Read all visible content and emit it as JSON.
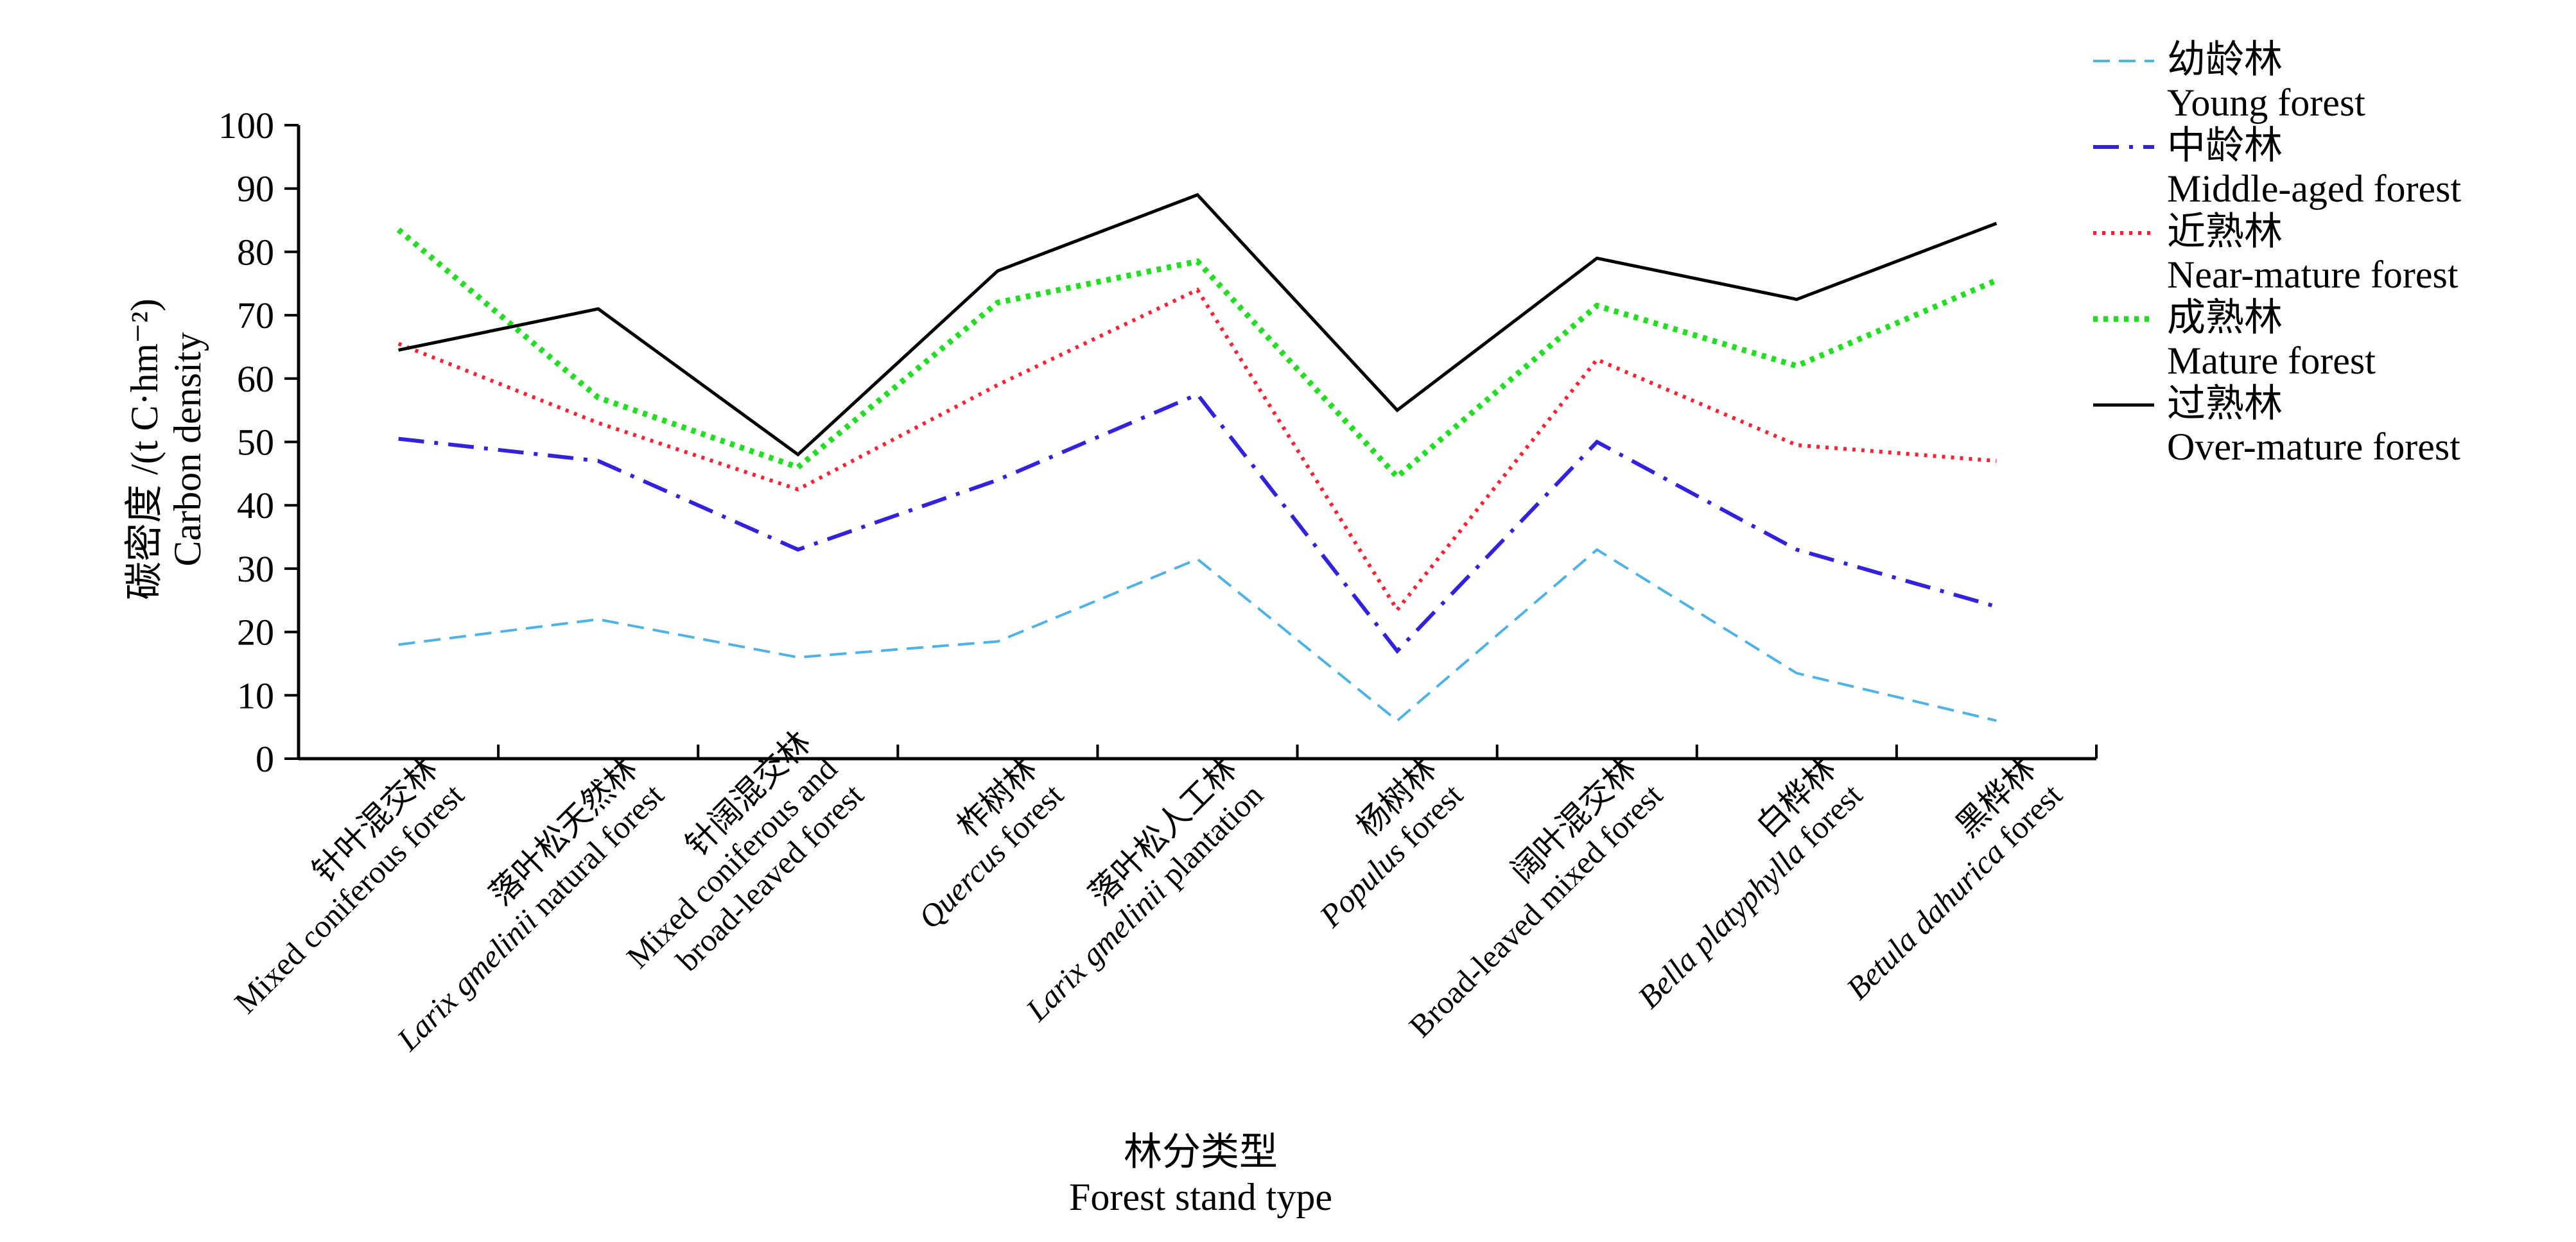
{
  "chart_data": {
    "type": "line",
    "xlabel_cn": "林分类型",
    "xlabel_en": "Forest stand type",
    "ylabel_cn": "碳密度 /(t C·hm⁻²)",
    "ylabel_en": "Carbon density",
    "ylim": [
      0,
      100
    ],
    "yticks": [
      "0",
      "10",
      "20",
      "30",
      "40",
      "50",
      "60",
      "70",
      "80",
      "90",
      "100"
    ],
    "grid": false,
    "legend_position": "top-right outside",
    "categories": [
      {
        "cn": "针叶混交林",
        "en": [
          {
            "t": "Mixed coniferous forest",
            "i": false
          }
        ]
      },
      {
        "cn": "落叶松天然林",
        "en": [
          {
            "t": "Larix gmelinii",
            "i": true
          },
          {
            "t": " natural forest",
            "i": false
          }
        ]
      },
      {
        "cn": "针阔混交林",
        "en": [
          {
            "t": "Mixed coniferous and",
            "i": false
          }
        ],
        "en2": "broad-leaved forest"
      },
      {
        "cn": "柞树林",
        "en": [
          {
            "t": "Quercus",
            "i": true
          },
          {
            "t": " forest",
            "i": false
          }
        ]
      },
      {
        "cn": "落叶松人工林",
        "en": [
          {
            "t": "Larix gmelinii",
            "i": true
          },
          {
            "t": " plantation",
            "i": false
          }
        ]
      },
      {
        "cn": "杨树林",
        "en": [
          {
            "t": "Populus",
            "i": true
          },
          {
            "t": " forest",
            "i": false
          }
        ]
      },
      {
        "cn": "阔叶混交林",
        "en": [
          {
            "t": "Broad-leaved mixed forest",
            "i": false
          }
        ]
      },
      {
        "cn": "白桦林",
        "en": [
          {
            "t": "Bella platyphylla",
            "i": true
          },
          {
            "t": " forest",
            "i": false
          }
        ]
      },
      {
        "cn": "黑桦林",
        "en": [
          {
            "t": "Betula dahurica",
            "i": true
          },
          {
            "t": " forest",
            "i": false
          }
        ]
      }
    ],
    "series": [
      {
        "name_cn": "幼龄林",
        "name_en": "Young forest",
        "color": "#4db3e6",
        "dash": "dashed",
        "values": [
          18,
          22,
          16,
          18.5,
          31.5,
          6,
          33,
          13.5,
          6
        ]
      },
      {
        "name_cn": "中龄林",
        "name_en": "Middle-aged forest",
        "color": "#3322dd",
        "dash": "dashdot",
        "values": [
          50.5,
          47,
          33,
          44,
          57.5,
          17,
          50,
          33,
          24
        ]
      },
      {
        "name_cn": "近熟林",
        "name_en": "Near-mature forest",
        "color": "#ff2233",
        "dash": "dotted",
        "values": [
          65.5,
          53,
          42.5,
          59,
          74,
          23.5,
          63,
          49.5,
          47
        ]
      },
      {
        "name_cn": "成熟林",
        "name_en": "Mature forest",
        "color": "#22dd22",
        "dash": "densedot",
        "values": [
          83.5,
          57,
          46,
          72,
          78.5,
          44.5,
          71.5,
          62,
          75.5
        ]
      },
      {
        "name_cn": "过熟林",
        "name_en": "Over-mature forest",
        "color": "#000000",
        "dash": "solid",
        "values": [
          64.5,
          71,
          48,
          77,
          89,
          55,
          79,
          72.5,
          84.5
        ]
      }
    ]
  }
}
